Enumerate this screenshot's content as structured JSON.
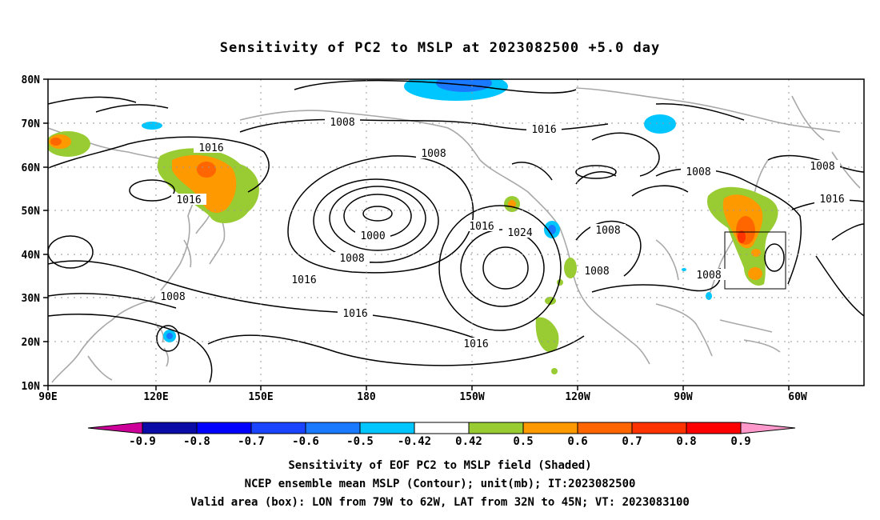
{
  "title": "Sensitivity of PC2 to MSLP at 2023082500 +5.0 day",
  "lat_labels": [
    "80N",
    "70N",
    "60N",
    "50N",
    "40N",
    "30N",
    "20N",
    "10N"
  ],
  "lon_labels": [
    "90E",
    "120E",
    "150E",
    "180",
    "150W",
    "120W",
    "90W",
    "60W"
  ],
  "contour_labels": [
    "1008",
    "1016",
    "1008",
    "1016",
    "1016",
    "1000",
    "1008",
    "1016",
    "1008",
    "1016",
    "1016",
    "1024",
    "1008",
    "1008",
    "1016",
    "1008",
    "1016",
    "1008"
  ],
  "colorbar": {
    "colors": [
      "#cc0099",
      "#0a0aa6",
      "#0000ff",
      "#1a44ff",
      "#1a7aff",
      "#00c6ff",
      "#ffffff",
      "#99cc33",
      "#ff9900",
      "#ff6600",
      "#ff3300",
      "#ff0000",
      "#ff99cc"
    ],
    "labels": [
      "-0.9",
      "-0.8",
      "-0.7",
      "-0.6",
      "-0.5",
      "-0.42",
      "0.42",
      "0.5",
      "0.6",
      "0.7",
      "0.8",
      "0.9"
    ]
  },
  "captions": [
    "Sensitivity of EOF PC2 to MSLP field (Shaded)",
    "NCEP ensemble mean MSLP (Contour); unit(mb); IT:2023082500",
    "Valid area (box): LON from 79W to 62W, LAT from 32N to 45N; VT: 2023083100"
  ]
}
